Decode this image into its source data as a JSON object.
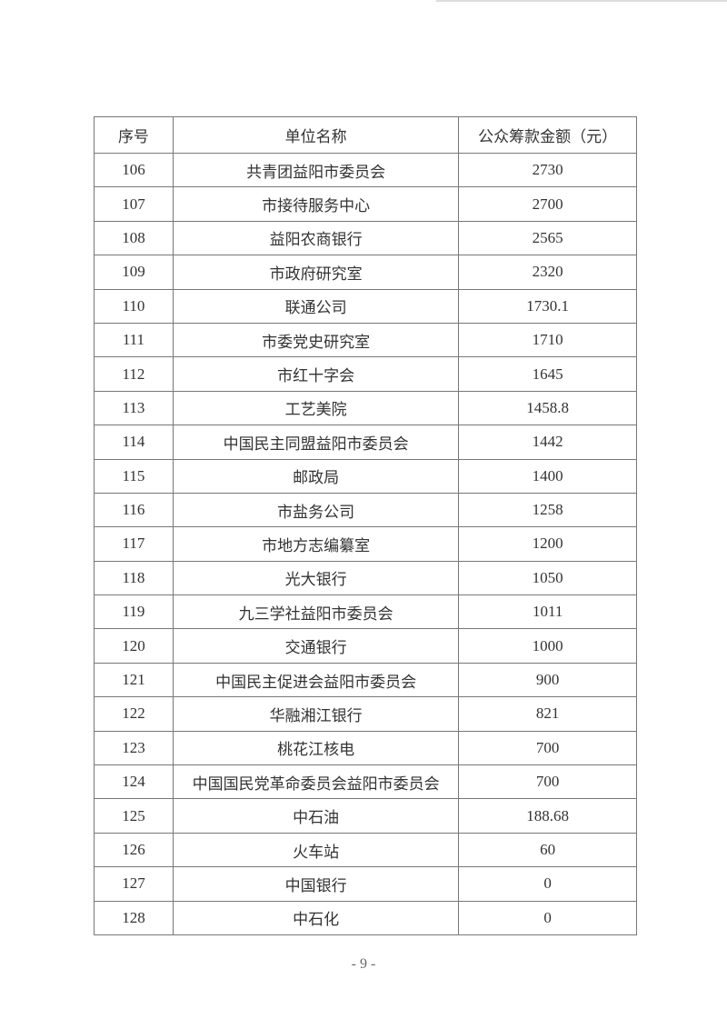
{
  "table": {
    "headers": [
      "序号",
      "单位名称",
      "公众筹款金额（元）"
    ],
    "rows": [
      [
        "106",
        "共青团益阳市委员会",
        "2730"
      ],
      [
        "107",
        "市接待服务中心",
        "2700"
      ],
      [
        "108",
        "益阳农商银行",
        "2565"
      ],
      [
        "109",
        "市政府研究室",
        "2320"
      ],
      [
        "110",
        "联通公司",
        "1730.1"
      ],
      [
        "111",
        "市委党史研究室",
        "1710"
      ],
      [
        "112",
        "市红十字会",
        "1645"
      ],
      [
        "113",
        "工艺美院",
        "1458.8"
      ],
      [
        "114",
        "中国民主同盟益阳市委员会",
        "1442"
      ],
      [
        "115",
        "邮政局",
        "1400"
      ],
      [
        "116",
        "市盐务公司",
        "1258"
      ],
      [
        "117",
        "市地方志编纂室",
        "1200"
      ],
      [
        "118",
        "光大银行",
        "1050"
      ],
      [
        "119",
        "九三学社益阳市委员会",
        "1011"
      ],
      [
        "120",
        "交通银行",
        "1000"
      ],
      [
        "121",
        "中国民主促进会益阳市委员会",
        "900"
      ],
      [
        "122",
        "华融湘江银行",
        "821"
      ],
      [
        "123",
        "桃花江核电",
        "700"
      ],
      [
        "124",
        "中国国民党革命委员会益阳市委员会",
        "700"
      ],
      [
        "125",
        "中石油",
        "188.68"
      ],
      [
        "126",
        "火车站",
        "60"
      ],
      [
        "127",
        "中国银行",
        "0"
      ],
      [
        "128",
        "中石化",
        "0"
      ]
    ]
  },
  "page_number": "- 9 -"
}
